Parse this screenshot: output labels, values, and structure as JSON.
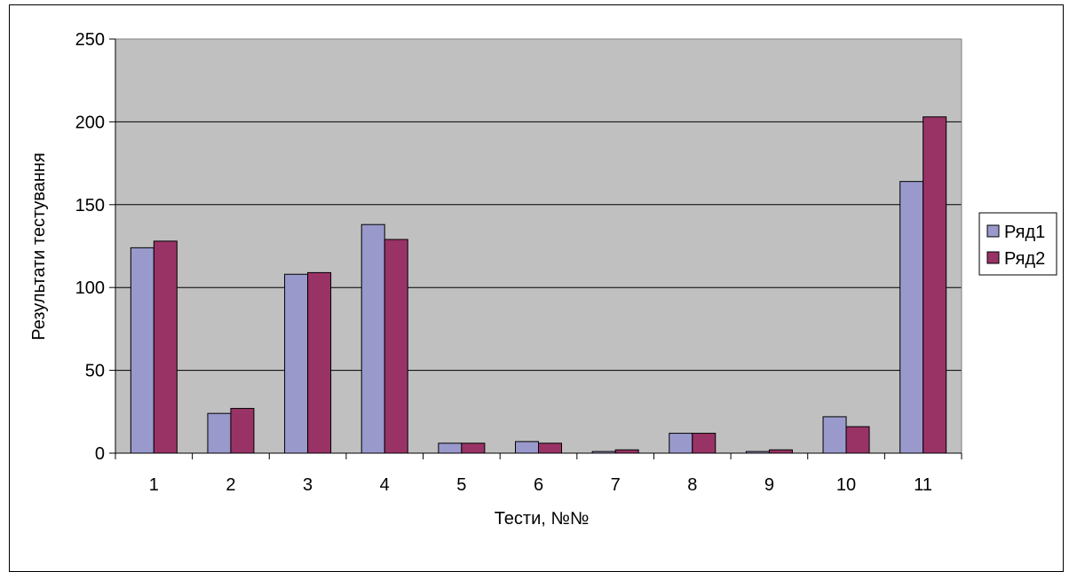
{
  "chart_data": {
    "type": "bar",
    "categories": [
      "1",
      "2",
      "3",
      "4",
      "5",
      "6",
      "7",
      "8",
      "9",
      "10",
      "11"
    ],
    "series": [
      {
        "name": "Ряд1",
        "color": "#9999cc",
        "values": [
          124,
          24,
          108,
          138,
          6,
          7,
          1,
          12,
          1,
          22,
          164
        ]
      },
      {
        "name": "Ряд2",
        "color": "#993366",
        "values": [
          128,
          27,
          109,
          129,
          6,
          6,
          2,
          12,
          2,
          16,
          203
        ]
      }
    ],
    "xlabel": "Тести, №№",
    "ylabel": "Результати тестування",
    "ylim": [
      0,
      250
    ],
    "yticks": [
      "0",
      "50",
      "100",
      "150",
      "200",
      "250"
    ],
    "plot_background": "#c0c0c0",
    "grid": true,
    "legend": "right"
  }
}
